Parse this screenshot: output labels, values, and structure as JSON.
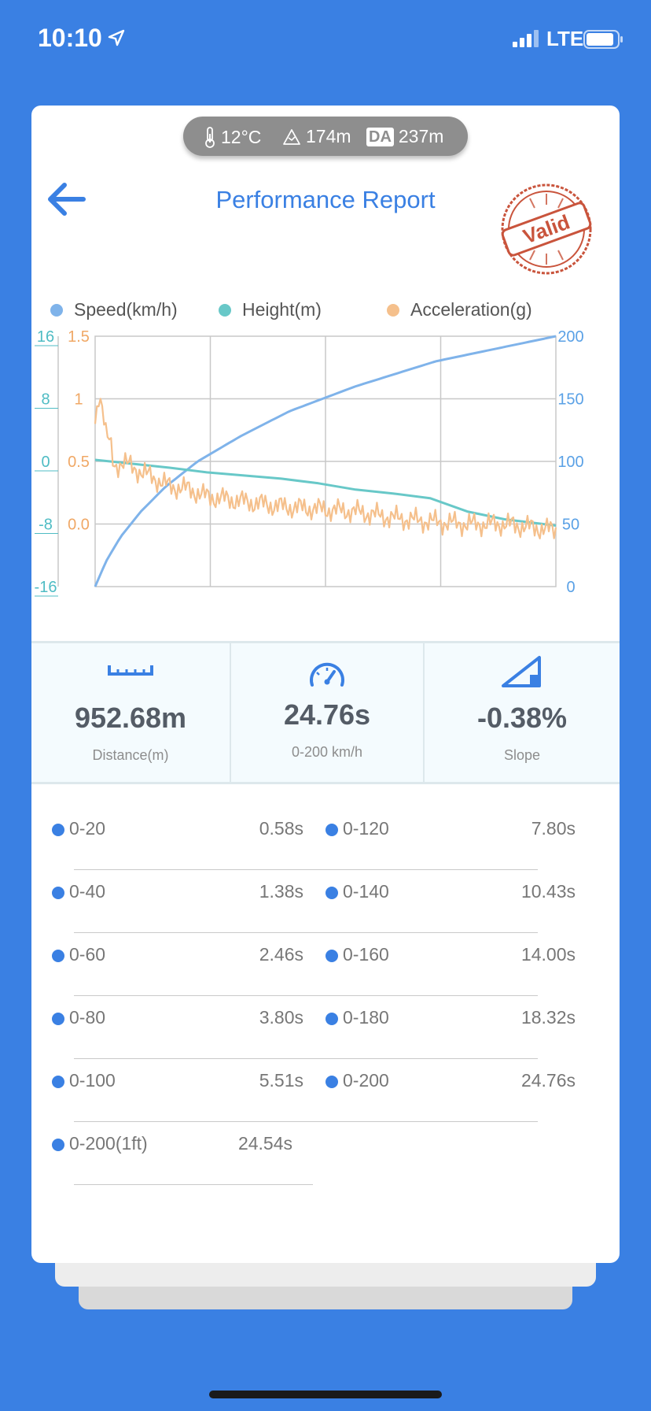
{
  "status_bar": {
    "time": "10:10",
    "network": "LTE"
  },
  "environment": {
    "temperature": "12°C",
    "altitude": "174m",
    "density_altitude": "237m",
    "density_altitude_badge": "DA"
  },
  "header": {
    "title": "Performance Report",
    "stamp_text": "Valid"
  },
  "chart_data": {
    "type": "line",
    "legend": [
      "Speed(km/h)",
      "Height(m)",
      "Acceleration(g)"
    ],
    "series": [
      {
        "name": "Speed(km/h)",
        "axis": "right",
        "color": "#7fb3ea",
        "x": [
          0,
          0.58,
          1.38,
          2.46,
          3.8,
          5.51,
          7.8,
          10.43,
          14.0,
          18.32,
          24.76
        ],
        "y": [
          0,
          20,
          40,
          60,
          80,
          100,
          120,
          140,
          160,
          180,
          200
        ]
      },
      {
        "name": "Height(m)",
        "axis": "left-outer",
        "color": "#68c8c8",
        "x": [
          0,
          2,
          4,
          6,
          8,
          10,
          12,
          14,
          16,
          18,
          20,
          22,
          24.76
        ],
        "y": [
          0.2,
          -0.3,
          -0.8,
          -1.4,
          -1.8,
          -2.2,
          -2.8,
          -3.6,
          -4.1,
          -4.7,
          -6.4,
          -7.4,
          -8.2
        ]
      },
      {
        "name": "Acceleration(g)",
        "axis": "left-inner",
        "color": "#f5c08c",
        "x": [
          0,
          0.2,
          0.4,
          0.6,
          0.8,
          1.0,
          1.5,
          2.0,
          3.0,
          4.0,
          5.0,
          6.0,
          7.0,
          8.0,
          10.0,
          12.0,
          14.0,
          16.0,
          18.0,
          20.0,
          22.0,
          24.76
        ],
        "y": [
          0.8,
          1.05,
          0.95,
          0.7,
          0.65,
          0.45,
          0.5,
          0.45,
          0.38,
          0.3,
          0.28,
          0.22,
          0.2,
          0.18,
          0.14,
          0.12,
          0.1,
          0.05,
          0.02,
          0.0,
          0.0,
          -0.05
        ]
      }
    ],
    "x_range": [
      0,
      24.76
    ],
    "axes": {
      "right": {
        "range": [
          0,
          200
        ],
        "ticks": [
          "200",
          "150",
          "100",
          "50",
          "0"
        ],
        "color": "#5aa1e6"
      },
      "left_outer": {
        "range": [
          -16,
          16
        ],
        "ticks": [
          "16",
          "8",
          "0",
          "-8",
          "-16"
        ],
        "color": "#4fbcc4"
      },
      "left_inner": {
        "range": [
          -0.5,
          1.5
        ],
        "ticks": [
          "1.5",
          "1",
          "0.5",
          "0.0"
        ],
        "color": "#f0a866"
      }
    },
    "grid": true
  },
  "stats": [
    {
      "value": "952.68m",
      "label": "Distance(m)",
      "icon": "ruler-icon"
    },
    {
      "value": "24.76s",
      "label": "0-200 km/h",
      "icon": "speedometer-icon"
    },
    {
      "value": "-0.38%",
      "label": "Slope",
      "icon": "slope-icon"
    }
  ],
  "splits": [
    {
      "label": "0-20",
      "value": "0.58s"
    },
    {
      "label": "0-120",
      "value": "7.80s"
    },
    {
      "label": "0-40",
      "value": "1.38s"
    },
    {
      "label": "0-140",
      "value": "10.43s"
    },
    {
      "label": "0-60",
      "value": "2.46s"
    },
    {
      "label": "0-160",
      "value": "14.00s"
    },
    {
      "label": "0-80",
      "value": "3.80s"
    },
    {
      "label": "0-180",
      "value": "18.32s"
    },
    {
      "label": "0-100",
      "value": "5.51s"
    },
    {
      "label": "0-200",
      "value": "24.76s"
    },
    {
      "label": "0-200(1ft)",
      "value": "24.54s"
    }
  ],
  "colors": {
    "accent": "#3a80e3",
    "background": "#3a80e3"
  }
}
